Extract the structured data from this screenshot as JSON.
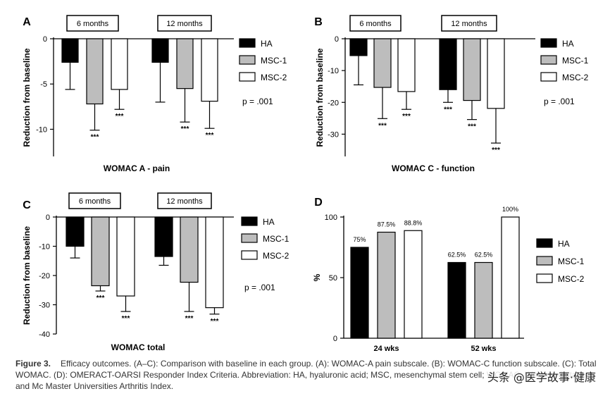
{
  "figure": {
    "caption_label": "Figure 3.",
    "caption_text": "Efficacy outcomes. (A–C): Comparison with baseline in each group. (A): WOMAC-A pain subscale. (B): WOMAC-C function subscale. (C): Total WOMAC. (D): OMERACT-OARSI Responder Index Criteria. Abbreviation: HA, hyaluronic acid; MSC, mesenchymal stem cell; WOMAC, Western Ontario and Mc Master Universities Arthritis Index.",
    "watermark": "头条 @医学故事·健康"
  },
  "colors": {
    "HA": "#000000",
    "MSC-1": "#bdbdbd",
    "MSC-2": "#ffffff",
    "stroke": "#000000",
    "background": "#ffffff"
  },
  "chart_data": [
    {
      "panel": "A",
      "type": "bar",
      "title": "WOMAC A - pain",
      "ylabel": "Reduction from baseline",
      "ylim": [
        -13,
        0
      ],
      "yticks": [
        0,
        -5,
        -10
      ],
      "groups": [
        "6 months",
        "12 months"
      ],
      "series": [
        {
          "name": "HA",
          "values": [
            -2.6,
            -2.6
          ],
          "error": [
            3.0,
            4.4
          ],
          "sig": [
            "",
            ""
          ]
        },
        {
          "name": "MSC-1",
          "values": [
            -7.2,
            -5.5
          ],
          "error": [
            2.9,
            3.7
          ],
          "sig": [
            "***",
            "***"
          ]
        },
        {
          "name": "MSC-2",
          "values": [
            -5.6,
            -6.9
          ],
          "error": [
            2.2,
            3.0
          ],
          "sig": [
            "***",
            "***"
          ]
        }
      ],
      "legend": [
        "HA",
        "MSC-1",
        "MSC-2"
      ],
      "pvalue": "p = .001"
    },
    {
      "panel": "B",
      "type": "bar",
      "title": "WOMAC C - function",
      "ylabel": "Reduction from baseline",
      "ylim": [
        -37,
        0
      ],
      "yticks": [
        0,
        -10,
        -20,
        -30
      ],
      "groups": [
        "6 months",
        "12 months"
      ],
      "series": [
        {
          "name": "HA",
          "values": [
            -5.3,
            -16.0
          ],
          "error": [
            9.2,
            4.0
          ],
          "sig": [
            "",
            "***"
          ]
        },
        {
          "name": "MSC-1",
          "values": [
            -15.3,
            -19.4
          ],
          "error": [
            9.8,
            6.0
          ],
          "sig": [
            "***",
            "***"
          ]
        },
        {
          "name": "MSC-2",
          "values": [
            -16.6,
            -21.9
          ],
          "error": [
            5.6,
            10.9
          ],
          "sig": [
            "***",
            "***"
          ]
        }
      ],
      "legend": [
        "HA",
        "MSC-1",
        "MSC-2"
      ],
      "pvalue": "p = .001"
    },
    {
      "panel": "C",
      "type": "bar",
      "title": "WOMAC total",
      "ylabel": "Reduction from baseline",
      "ylim": [
        -40,
        0
      ],
      "yticks": [
        0,
        -10,
        -20,
        -30,
        -40
      ],
      "groups": [
        "6 months",
        "12 months"
      ],
      "series": [
        {
          "name": "HA",
          "values": [
            -10.0,
            -13.5
          ],
          "error": [
            4.0,
            3.0
          ],
          "sig": [
            "",
            ""
          ]
        },
        {
          "name": "MSC-1",
          "values": [
            -23.5,
            -22.3
          ],
          "error": [
            1.8,
            10.0
          ],
          "sig": [
            "***",
            "***"
          ]
        },
        {
          "name": "MSC-2",
          "values": [
            -27.0,
            -31.0
          ],
          "error": [
            5.3,
            2.2
          ],
          "sig": [
            "***",
            "***"
          ]
        }
      ],
      "legend": [
        "HA",
        "MSC-1",
        "MSC-2"
      ],
      "pvalue": "p = .001"
    },
    {
      "panel": "D",
      "type": "bar",
      "title": "",
      "ylabel": "%",
      "ylim": [
        0,
        100
      ],
      "yticks": [
        0,
        50,
        100
      ],
      "groups": [
        "24 wks",
        "52 wks"
      ],
      "series": [
        {
          "name": "HA",
          "values": [
            75,
            62.5
          ],
          "labels": [
            "75%",
            "62.5%"
          ]
        },
        {
          "name": "MSC-1",
          "values": [
            87.5,
            62.5
          ],
          "labels": [
            "87.5%",
            "62.5%"
          ]
        },
        {
          "name": "MSC-2",
          "values": [
            88.8,
            100
          ],
          "labels": [
            "88.8%",
            "100%"
          ]
        }
      ],
      "legend": [
        "HA",
        "MSC-1",
        "MSC-2"
      ]
    }
  ]
}
